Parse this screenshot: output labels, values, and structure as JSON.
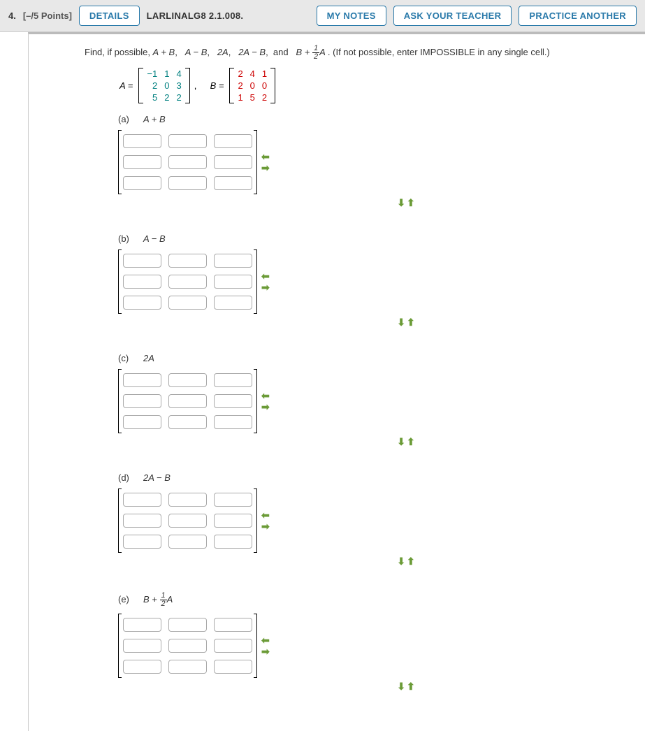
{
  "header": {
    "number": "4.",
    "points": "[–/5 Points]",
    "details_btn": "DETAILS",
    "ref": "LARLINALG8 2.1.008.",
    "notes_btn": "MY NOTES",
    "ask_btn": "ASK YOUR TEACHER",
    "practice_btn": "PRACTICE ANOTHER"
  },
  "prompt": {
    "intro": "Find, if possible, ",
    "expr1": "A + B",
    "expr2": "A − B",
    "expr3": "2A",
    "expr4": "2A − B",
    "expr5_pre": "B + ",
    "expr5_frac_n": "1",
    "expr5_frac_d": "2",
    "expr5_post": "A",
    "hint": ". (If not possible, enter IMPOSSIBLE in any single cell.)"
  },
  "matrices": {
    "A_label": "A =",
    "A": [
      [
        "−1",
        "1",
        "4"
      ],
      [
        "2",
        "0",
        "3"
      ],
      [
        "5",
        "2",
        "2"
      ]
    ],
    "sep": ",",
    "B_label": "B =",
    "B": [
      [
        "2",
        "4",
        "1"
      ],
      [
        "2",
        "0",
        "0"
      ],
      [
        "1",
        "5",
        "2"
      ]
    ]
  },
  "parts": [
    {
      "id": "a",
      "label": "(a)",
      "expr_html": "A + B",
      "frac": false
    },
    {
      "id": "b",
      "label": "(b)",
      "expr_html": "A − B",
      "frac": false
    },
    {
      "id": "c",
      "label": "(c)",
      "expr_html": "2A",
      "frac": false
    },
    {
      "id": "d",
      "label": "(d)",
      "expr_html": "2A − B",
      "frac": false
    },
    {
      "id": "e",
      "label": "(e)",
      "expr_html": "B + ",
      "frac": true,
      "frac_n": "1",
      "frac_d": "2",
      "expr_post": "A"
    }
  ],
  "arrows": {
    "left": "⬅",
    "right": "➡",
    "down": "⬇",
    "up": "⬆"
  },
  "style": {
    "btn_color": "#2a7aaa",
    "matrix_a_color": "#008080",
    "matrix_b_color": "#cc0000",
    "arrow_color": "#6b9b37",
    "input_rows": 3,
    "input_cols": 3
  }
}
